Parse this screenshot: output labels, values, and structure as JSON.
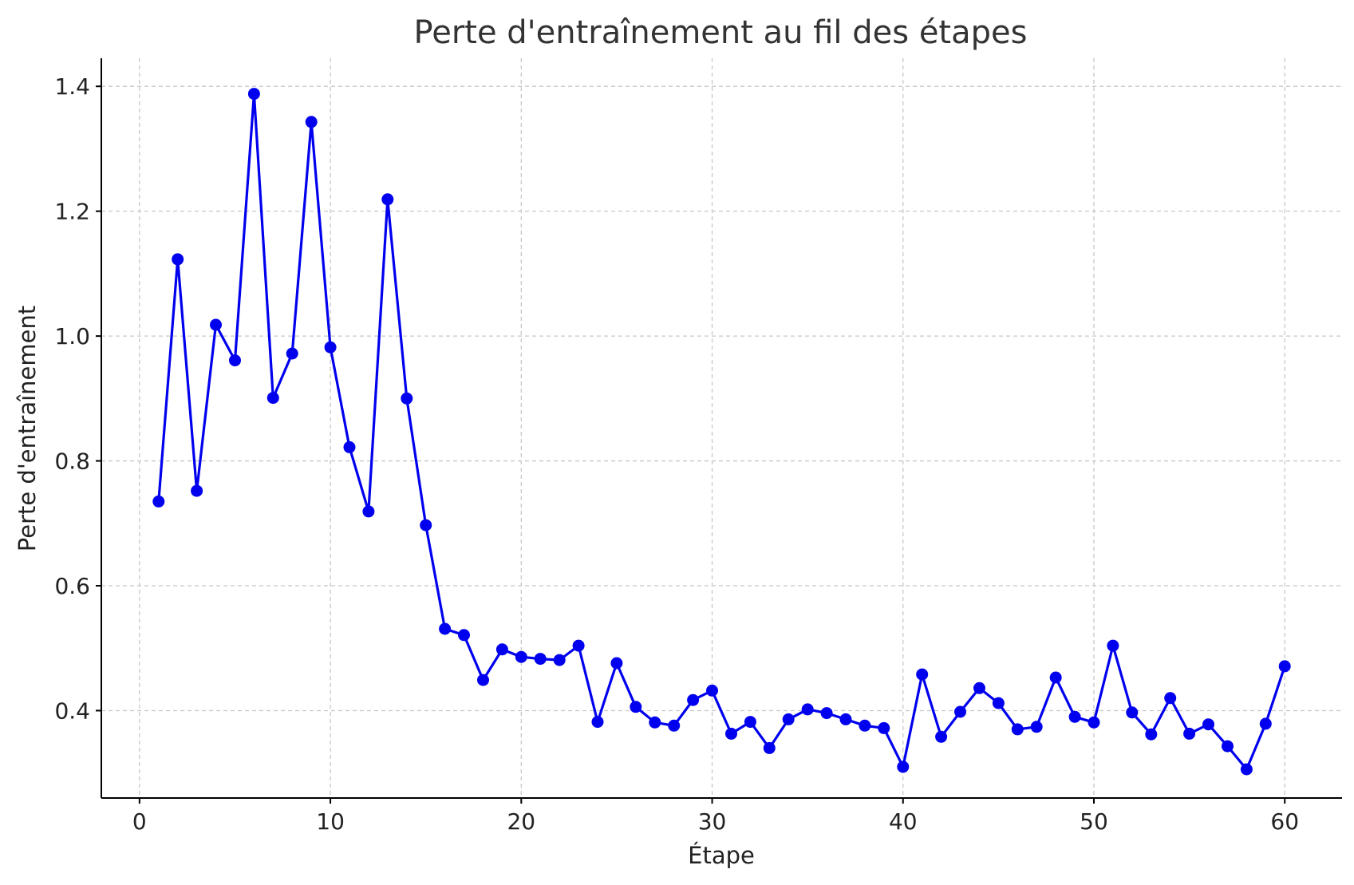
{
  "chart_data": {
    "type": "line",
    "title": "Perte d'entraînement au fil des étapes",
    "xlabel": "Étape",
    "ylabel": "Perte d'entraînement",
    "xlim": [
      -2,
      63
    ],
    "ylim": [
      0.26,
      1.445
    ],
    "xticks": [
      0,
      10,
      20,
      30,
      40,
      50,
      60
    ],
    "yticks": [
      0.4,
      0.6,
      0.8,
      1.0,
      1.2,
      1.4
    ],
    "xtick_labels": [
      "0",
      "10",
      "20",
      "30",
      "40",
      "50",
      "60"
    ],
    "ytick_labels": [
      "0.4",
      "0.6",
      "0.8",
      "1.0",
      "1.2",
      "1.4"
    ],
    "grid": true,
    "legend": "none",
    "color": "#0000ee",
    "x": [
      1,
      2,
      3,
      4,
      5,
      6,
      7,
      8,
      9,
      10,
      11,
      12,
      13,
      14,
      15,
      16,
      17,
      18,
      19,
      20,
      21,
      22,
      23,
      24,
      25,
      26,
      27,
      28,
      29,
      30,
      31,
      32,
      33,
      34,
      35,
      36,
      37,
      38,
      39,
      40,
      41,
      42,
      43,
      44,
      45,
      46,
      47,
      48,
      49,
      50,
      51,
      52,
      53,
      54,
      55,
      56,
      57,
      58,
      59,
      60
    ],
    "y": [
      0.735,
      1.123,
      0.752,
      1.018,
      0.961,
      1.388,
      0.901,
      0.972,
      1.343,
      0.982,
      0.822,
      0.719,
      1.219,
      0.9,
      0.697,
      0.531,
      0.521,
      0.449,
      0.498,
      0.486,
      0.483,
      0.481,
      0.504,
      0.382,
      0.476,
      0.406,
      0.381,
      0.376,
      0.417,
      0.432,
      0.363,
      0.382,
      0.34,
      0.386,
      0.402,
      0.396,
      0.386,
      0.376,
      0.372,
      0.31,
      0.458,
      0.358,
      0.398,
      0.436,
      0.412,
      0.37,
      0.374,
      0.453,
      0.39,
      0.381,
      0.504,
      0.397,
      0.362,
      0.42,
      0.363,
      0.378,
      0.343,
      0.306,
      0.379,
      0.471
    ]
  }
}
